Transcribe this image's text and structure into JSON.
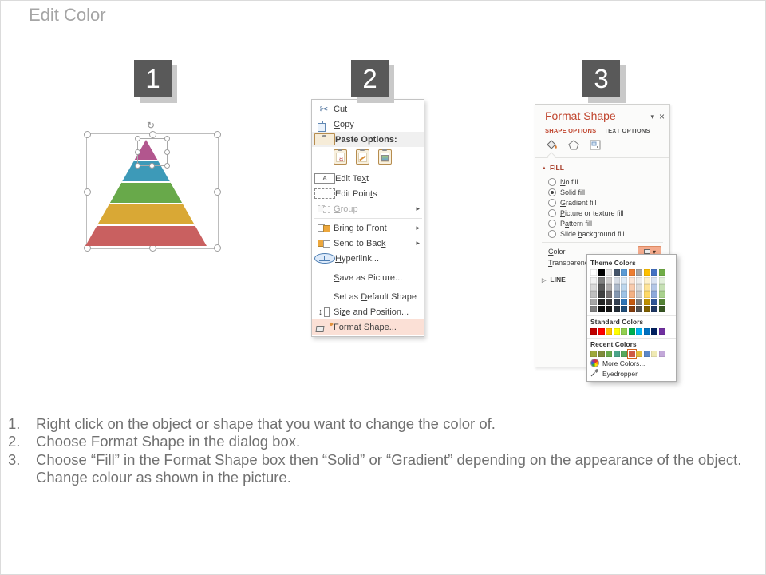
{
  "title": "Edit Color",
  "steps": [
    "1",
    "2",
    "3"
  ],
  "pyramid": {
    "layers": [
      "#b2568e",
      "#3d9ab8",
      "#68a94a",
      "#d9a835",
      "#c96060"
    ]
  },
  "context_menu": {
    "items": [
      {
        "label": "Cut",
        "u": 2,
        "icon": "cut"
      },
      {
        "label": "Copy",
        "u": 0,
        "icon": "copy"
      },
      {
        "label": "Paste Options:",
        "u": null,
        "icon": "paste",
        "highlight": "gray"
      },
      {
        "type": "paste-icons",
        "icons": [
          "paste-keep-source-formatting-icon",
          "paste-merge-formatting-icon",
          "paste-as-picture-icon"
        ]
      },
      {
        "type": "sep"
      },
      {
        "label": "Edit Text",
        "u": 7,
        "icon": "edittext"
      },
      {
        "label": "Edit Points",
        "u": 9,
        "icon": "editpoints"
      },
      {
        "label": "Group",
        "u": 0,
        "icon": "group",
        "disabled": true,
        "arrow": true
      },
      {
        "type": "sep"
      },
      {
        "label": "Bring to Front",
        "u": 10,
        "icon": "bringfront",
        "arrow": true
      },
      {
        "label": "Send to Back",
        "u": 11,
        "icon": "sendback",
        "arrow": true
      },
      {
        "label": "Hyperlink...",
        "u": 0,
        "icon": "hyperlink"
      },
      {
        "type": "sep"
      },
      {
        "label": "Save as Picture...",
        "u": 0,
        "icon": null
      },
      {
        "type": "sep"
      },
      {
        "label": "Set as Default Shape",
        "u": 7,
        "icon": null
      },
      {
        "label": "Size and Position...",
        "u": 2,
        "icon": "size"
      },
      {
        "label": "Format Shape...",
        "u": 1,
        "icon": "formatshape",
        "highlight": "pink"
      }
    ]
  },
  "format_panel": {
    "title": "Format Shape",
    "tabs": [
      {
        "label": "SHAPE OPTIONS"
      },
      {
        "label": "TEXT OPTIONS"
      }
    ],
    "fill_header": "FILL",
    "line_header": "LINE",
    "color_label": {
      "label": "Color",
      "u": 0
    },
    "transparency_label": {
      "label": "Transparency",
      "u": 0
    },
    "options": [
      {
        "label": "No fill",
        "u": 0
      },
      {
        "label": "Solid fill",
        "u": 0,
        "selected": true
      },
      {
        "label": "Gradient fill",
        "u": 0
      },
      {
        "label": "Picture or texture fill",
        "u": 0
      },
      {
        "label": "Pattern fill",
        "u": 1
      },
      {
        "label": "Slide background fill",
        "u": 6
      }
    ]
  },
  "color_picker": {
    "theme_label": "Theme Colors",
    "standard_label": "Standard Colors",
    "recent_label": "Recent Colors",
    "more_colors_label": "More Colors...",
    "eyedropper_label": "Eyedropper",
    "theme_base": [
      "#FFFFFF",
      "#000000",
      "#E7E6E6",
      "#44546A",
      "#5B9BD5",
      "#ED7D31",
      "#A5A5A5",
      "#FFC000",
      "#4472C4",
      "#70AD47"
    ],
    "theme_variants": [
      [
        "#F2F2F2",
        "#7F7F7F",
        "#D0CECE",
        "#D6DCE5",
        "#DEEBF7",
        "#FBE5D6",
        "#EDEDED",
        "#FFF2CC",
        "#DAE3F3",
        "#E2EFDA"
      ],
      [
        "#D9D9D9",
        "#595959",
        "#AEABAB",
        "#ACB9CA",
        "#BDD7EE",
        "#F8CBAD",
        "#DBDBDB",
        "#FFE599",
        "#B4C7E7",
        "#C6E0B4"
      ],
      [
        "#BFBFBF",
        "#404040",
        "#757171",
        "#8497B0",
        "#9DC3E6",
        "#F4B183",
        "#C9C9C9",
        "#FFD966",
        "#8EAADB",
        "#A9D18E"
      ],
      [
        "#A6A6A6",
        "#262626",
        "#3A3838",
        "#333F50",
        "#2E75B6",
        "#C55A11",
        "#7B7B7B",
        "#BF9000",
        "#2F5597",
        "#548235"
      ],
      [
        "#7F7F7F",
        "#0D0D0D",
        "#171616",
        "#222B35",
        "#1F4E79",
        "#843C0C",
        "#525252",
        "#7F6000",
        "#1F3864",
        "#375623"
      ]
    ],
    "standard": [
      "#C00000",
      "#FF0000",
      "#FFC000",
      "#FFFF00",
      "#92D050",
      "#00B050",
      "#00B0F0",
      "#0070C0",
      "#002060",
      "#7030A0"
    ],
    "recent": [
      "#9FAA3B",
      "#7F8C3A",
      "#6AAA4B",
      "#4BA58A",
      "#57A85C",
      "#CE5B45",
      "#E3BE3C",
      "#5C88C9",
      "#EFE9B4",
      "#C3A8D9"
    ],
    "recent_selected": 5
  },
  "instructions": [
    {
      "num": "1.",
      "lines": [
        "Right click on the object or shape that you want to change the color of."
      ]
    },
    {
      "num": "2.",
      "lines": [
        "Choose Format Shape in the dialog box."
      ]
    },
    {
      "num": "3.",
      "lines": [
        "Choose “Fill” in the Format Shape box then “Solid” or “Gradient” depending on the appearance of the object.",
        "Change colour as shown in the picture."
      ]
    }
  ]
}
